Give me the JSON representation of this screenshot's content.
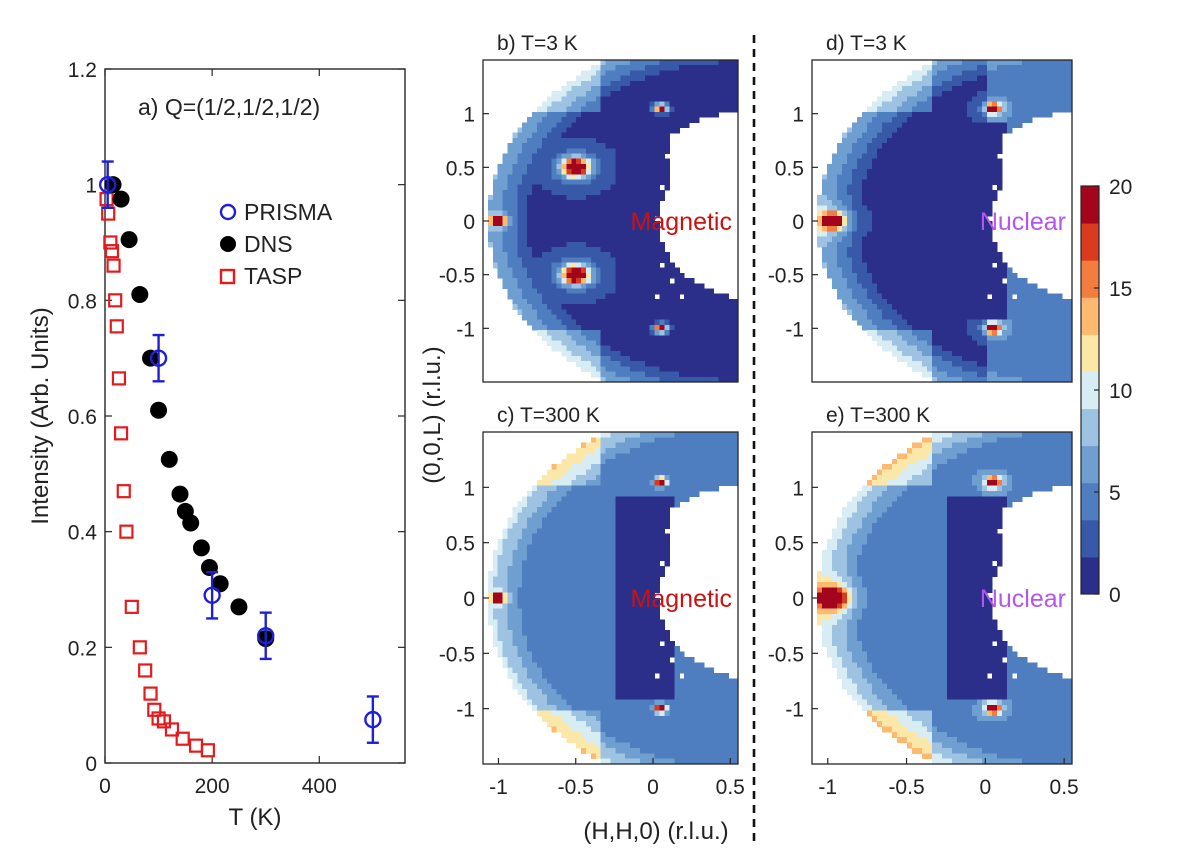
{
  "chart_data": [
    {
      "type": "scatter",
      "title": "a) Q=(1/2,1/2,1/2)",
      "xlabel": "T (K)",
      "ylabel": "Intensity (Arb. Units)",
      "xlim": [
        0,
        560
      ],
      "ylim": [
        0,
        1.2
      ],
      "xticks": [
        "0",
        "200",
        "400"
      ],
      "yticks": [
        "0",
        "0.2",
        "0.4",
        "0.6",
        "0.8",
        "1",
        "1.2"
      ],
      "series": [
        {
          "name": "PRISMA",
          "marker": "open-circle",
          "color": "#1f1fd6",
          "x": [
            5,
            100,
            200,
            300,
            500
          ],
          "y": [
            1.0,
            0.7,
            0.29,
            0.22,
            0.075
          ],
          "err": [
            0.04,
            0.04,
            0.04,
            0.04,
            0.04
          ]
        },
        {
          "name": "DNS",
          "marker": "filled-circle",
          "color": "#000000",
          "x": [
            15,
            30,
            45,
            65,
            85,
            100,
            120,
            140,
            150,
            160,
            180,
            195,
            215,
            250,
            300
          ],
          "y": [
            1.0,
            0.975,
            0.905,
            0.81,
            0.7,
            0.61,
            0.525,
            0.465,
            0.435,
            0.415,
            0.372,
            0.338,
            0.31,
            0.27,
            0.215
          ]
        },
        {
          "name": "TASP",
          "marker": "open-square",
          "color": "#e41a1c",
          "x": [
            3,
            6,
            10,
            13,
            16,
            19,
            22,
            26,
            30,
            35,
            40,
            50,
            65,
            75,
            85,
            92,
            100,
            110,
            125,
            145,
            170,
            192
          ],
          "y": [
            0.975,
            0.95,
            0.9,
            0.885,
            0.86,
            0.8,
            0.755,
            0.665,
            0.57,
            0.47,
            0.4,
            0.27,
            0.2,
            0.16,
            0.12,
            0.092,
            0.077,
            0.072,
            0.058,
            0.042,
            0.03,
            0.022
          ]
        }
      ]
    },
    {
      "type": "heatmap",
      "panels": [
        {
          "id": "b",
          "label": "b) T=3 K",
          "overlay": "Magnetic",
          "overlay_color": "#cc1111"
        },
        {
          "id": "c",
          "label": "c) T=300 K",
          "overlay": "Magnetic",
          "overlay_color": "#cc1111"
        },
        {
          "id": "d",
          "label": "d) T=3 K",
          "overlay": "Nuclear",
          "overlay_color": "#b455f0"
        },
        {
          "id": "e",
          "label": "e) T=300 K",
          "overlay": "Nuclear",
          "overlay_color": "#b455f0"
        }
      ],
      "xlabel": "(H,H,0) (r.l.u.)",
      "ylabel": "(0,0,L) (r.l.u.)",
      "xlim": [
        -1.1,
        0.55
      ],
      "ylim": [
        -1.5,
        1.5
      ],
      "xticks": [
        "-1",
        "-0.5",
        "0",
        "0.5"
      ],
      "yticks": [
        "1",
        "0.5",
        "0",
        "-0.5",
        "-1"
      ],
      "colorbar": {
        "range": [
          0,
          20
        ],
        "ticks": [
          "0",
          "5",
          "10",
          "15",
          "20"
        ],
        "colors": [
          "#2b2f8a",
          "#3858a8",
          "#4e7ec0",
          "#6f9fd0",
          "#9ec3e2",
          "#d8ecf4",
          "#fbe8a8",
          "#fdb970",
          "#f47c3e",
          "#d93b1f",
          "#a3061c"
        ]
      }
    }
  ]
}
